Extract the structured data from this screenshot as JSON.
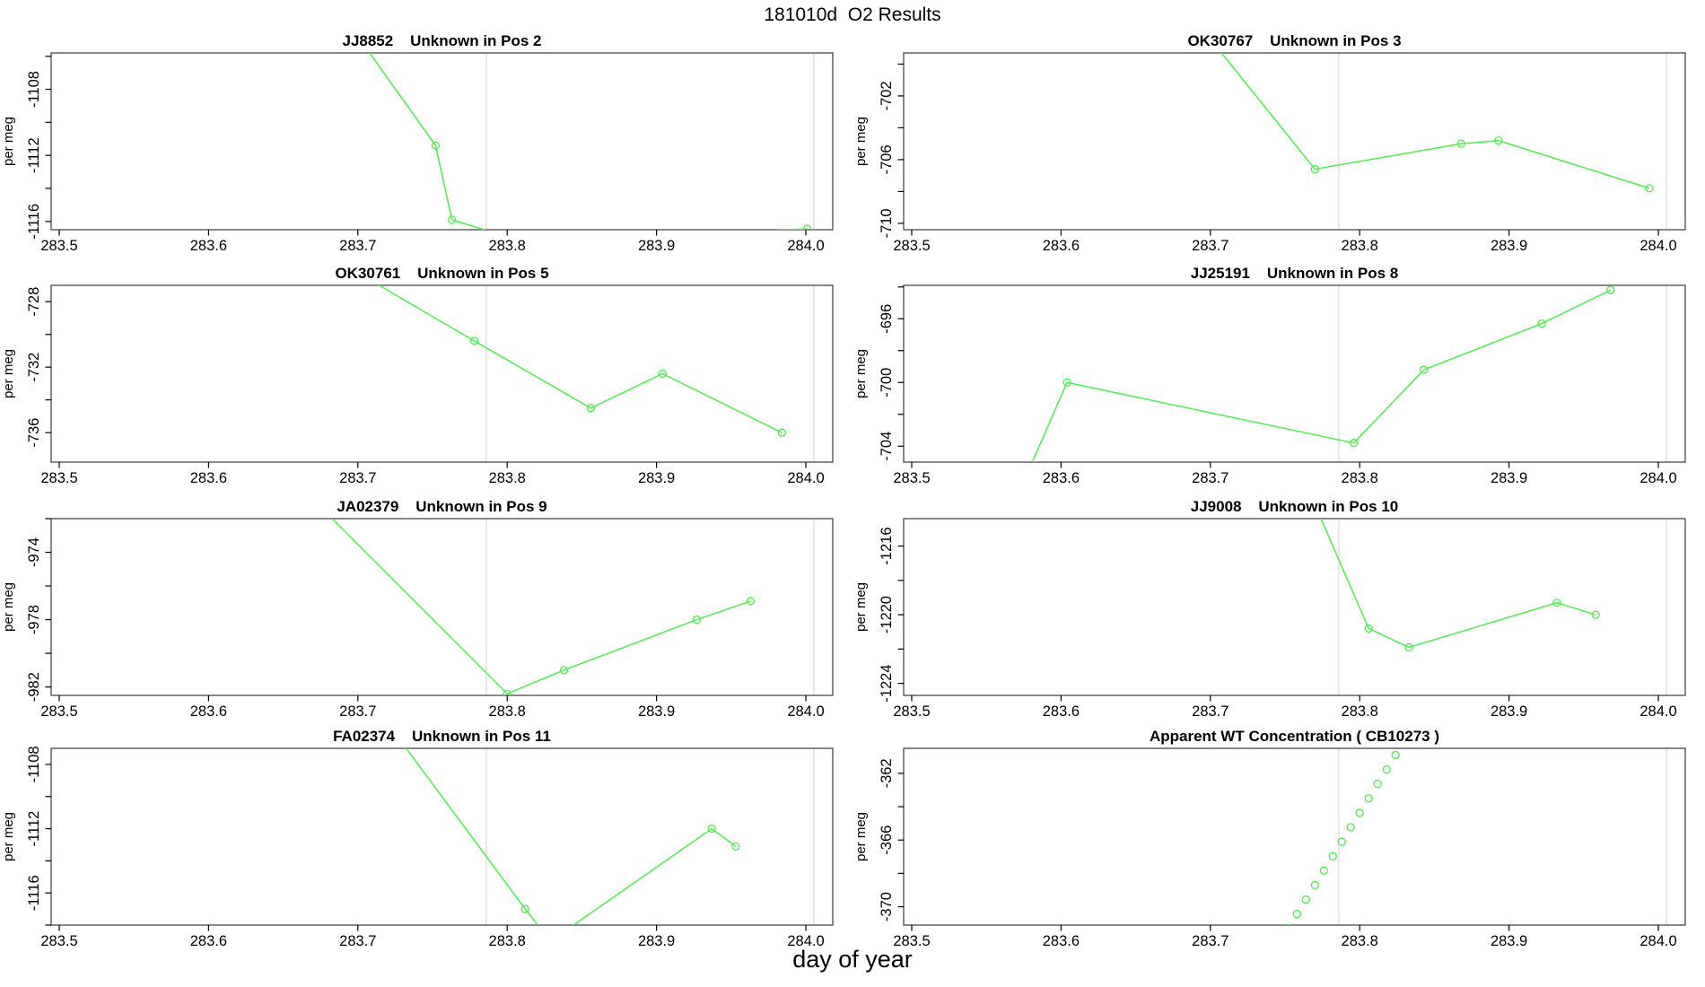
{
  "figure": {
    "title": "181010d  O2 Results",
    "xlabel": "day of year"
  },
  "colors": {
    "series": "#4dee4d",
    "reference_line": "#d8d8d8",
    "box": "#555555",
    "tick": "#000000",
    "text": "#000000",
    "background": "#ffffff"
  },
  "x_axis": {
    "ticks": [
      283.5,
      283.6,
      283.7,
      283.8,
      283.9,
      284.0
    ],
    "labels": [
      "283.5",
      "283.6",
      "283.7",
      "283.8",
      "283.9",
      "284.0"
    ],
    "xlim": [
      283.4946,
      284.0181
    ],
    "reference_lines": [
      283.786,
      284.0054
    ]
  },
  "chart_data": [
    {
      "type": "line",
      "title": "JJ8852    Unknown in Pos 2",
      "ylabel": "per meg",
      "ylim": [
        -1116.5,
        -1105.8
      ],
      "y_tick_values": [
        -1106,
        -1108,
        -1110,
        -1112,
        -1114,
        -1116
      ],
      "y_tick_labels": [
        "",
        "-1108",
        "",
        "-1112",
        "",
        "-1116"
      ],
      "line": [
        [
          283.7,
          -1104.8
        ],
        [
          283.752,
          -1111.4
        ],
        [
          283.763,
          -1115.9
        ],
        [
          283.81,
          -1117.2
        ],
        [
          284.001,
          -1116.45
        ]
      ],
      "points": [
        [
          283.752,
          -1111.4
        ],
        [
          283.763,
          -1115.9
        ],
        [
          284.001,
          -1116.45
        ]
      ]
    },
    {
      "type": "line",
      "title": "OK30767    Unknown in Pos 3",
      "ylabel": "per meg",
      "ylim": [
        -710.4,
        -699.3
      ],
      "y_tick_values": [
        -700,
        -702,
        -704,
        -706,
        -708,
        -710
      ],
      "y_tick_labels": [
        "",
        "-702",
        "",
        "-706",
        "",
        "-710"
      ],
      "line": [
        [
          283.698,
          -698.2
        ],
        [
          283.77,
          -706.6
        ],
        [
          283.868,
          -705.0
        ],
        [
          283.893,
          -704.8
        ],
        [
          283.994,
          -707.8
        ]
      ],
      "points": [
        [
          283.77,
          -706.6
        ],
        [
          283.868,
          -705.0
        ],
        [
          283.893,
          -704.8
        ],
        [
          283.994,
          -707.8
        ]
      ]
    },
    {
      "type": "line",
      "title": "OK30761    Unknown in Pos 5",
      "ylabel": "per meg",
      "ylim": [
        -737.8,
        -727.0
      ],
      "y_tick_values": [
        -728,
        -730,
        -732,
        -734,
        -736
      ],
      "y_tick_labels": [
        "-728",
        "",
        "-732",
        "",
        "-736"
      ],
      "line": [
        [
          283.703,
          -726.4
        ],
        [
          283.778,
          -730.4
        ],
        [
          283.856,
          -734.5
        ],
        [
          283.904,
          -732.4
        ],
        [
          283.984,
          -736.0
        ]
      ],
      "points": [
        [
          283.778,
          -730.4
        ],
        [
          283.856,
          -734.5
        ],
        [
          283.904,
          -732.4
        ],
        [
          283.984,
          -736.0
        ]
      ]
    },
    {
      "type": "line",
      "title": "JJ25191    Unknown in Pos 8",
      "ylabel": "per meg",
      "ylim": [
        -705.0,
        -693.9
      ],
      "y_tick_values": [
        -694,
        -696,
        -698,
        -700,
        -702,
        -704
      ],
      "y_tick_labels": [
        "",
        "-696",
        "",
        "-700",
        "",
        "-704"
      ],
      "line": [
        [
          283.578,
          -705.6
        ],
        [
          283.604,
          -700.0
        ],
        [
          283.796,
          -703.8
        ],
        [
          283.843,
          -699.2
        ],
        [
          283.922,
          -696.3
        ],
        [
          283.968,
          -694.2
        ]
      ],
      "points": [
        [
          283.604,
          -700.0
        ],
        [
          283.796,
          -703.8
        ],
        [
          283.843,
          -699.2
        ],
        [
          283.922,
          -696.3
        ],
        [
          283.968,
          -694.2
        ]
      ]
    },
    {
      "type": "line",
      "title": "JA02379    Unknown in Pos 9",
      "ylabel": "per meg",
      "ylim": [
        -982.5,
        -972.0
      ],
      "y_tick_values": [
        -972,
        -974,
        -976,
        -978,
        -980,
        -982
      ],
      "y_tick_labels": [
        "",
        "-974",
        "",
        "-978",
        "",
        "-982"
      ],
      "line": [
        [
          283.676,
          -971.4
        ],
        [
          283.8,
          -982.4
        ],
        [
          283.838,
          -981.0
        ],
        [
          283.927,
          -978.0
        ],
        [
          283.963,
          -976.9
        ]
      ],
      "points": [
        [
          283.8,
          -982.4
        ],
        [
          283.838,
          -981.0
        ],
        [
          283.927,
          -978.0
        ],
        [
          283.963,
          -976.9
        ]
      ]
    },
    {
      "type": "line",
      "title": "JJ9008    Unknown in Pos 10",
      "ylabel": "per meg",
      "ylim": [
        -1224.7,
        -1214.4
      ],
      "y_tick_values": [
        -1216,
        -1218,
        -1220,
        -1222,
        -1224
      ],
      "y_tick_labels": [
        "-1216",
        "",
        "-1220",
        "",
        "-1224"
      ],
      "line": [
        [
          283.768,
          -1213.2
        ],
        [
          283.806,
          -1220.8
        ],
        [
          283.833,
          -1221.9
        ],
        [
          283.932,
          -1219.3
        ],
        [
          283.958,
          -1220.0
        ]
      ],
      "points": [
        [
          283.806,
          -1220.8
        ],
        [
          283.833,
          -1221.9
        ],
        [
          283.932,
          -1219.3
        ],
        [
          283.958,
          -1220.0
        ]
      ]
    },
    {
      "type": "line",
      "title": "FA02374    Unknown in Pos 11",
      "ylabel": "per meg",
      "ylim": [
        -1118.0,
        -1107.0
      ],
      "y_tick_values": [
        -1108,
        -1110,
        -1112,
        -1114,
        -1116,
        -1118
      ],
      "y_tick_labels": [
        "-1108",
        "",
        "-1112",
        "",
        "-1116",
        ""
      ],
      "line": [
        [
          283.726,
          -1106.2
        ],
        [
          283.812,
          -1117.0
        ],
        [
          283.829,
          -1119.0
        ],
        [
          283.937,
          -1112.0
        ],
        [
          283.953,
          -1113.1
        ]
      ],
      "points": [
        [
          283.812,
          -1117.0
        ],
        [
          283.937,
          -1112.0
        ],
        [
          283.953,
          -1113.1
        ]
      ]
    },
    {
      "type": "scatter",
      "title": "Apparent WT Concentration ( CB10273 )",
      "ylabel": "per meg",
      "ylim": [
        -371.1,
        -360.5
      ],
      "y_tick_values": [
        -362,
        -364,
        -366,
        -368,
        -370
      ],
      "y_tick_labels": [
        "-362",
        "",
        "-366",
        "",
        "-370"
      ],
      "line": null,
      "points": [
        [
          283.752,
          -371.3
        ],
        [
          283.758,
          -370.43
        ],
        [
          283.764,
          -369.57
        ],
        [
          283.77,
          -368.7
        ],
        [
          283.776,
          -367.83
        ],
        [
          283.782,
          -366.97
        ],
        [
          283.788,
          -366.1
        ],
        [
          283.794,
          -365.23
        ],
        [
          283.8,
          -364.37
        ],
        [
          283.806,
          -363.5
        ],
        [
          283.812,
          -362.63
        ],
        [
          283.818,
          -361.77
        ],
        [
          283.824,
          -360.9
        ]
      ]
    }
  ]
}
